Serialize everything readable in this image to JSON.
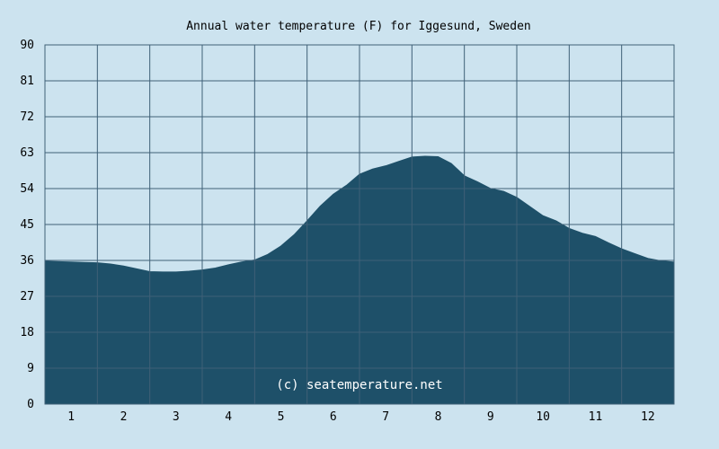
{
  "chart_data": {
    "type": "area",
    "title": "Annual water temperature (F) for Iggesund, Sweden",
    "watermark": "(c) seatemperature.net",
    "xlabel": "",
    "ylabel": "",
    "ylim": [
      0,
      90
    ],
    "xlim": [
      0.5,
      12.5
    ],
    "y_ticks": [
      "0",
      "9",
      "18",
      "27",
      "36",
      "45",
      "54",
      "63",
      "72",
      "81",
      "90"
    ],
    "x_ticks": [
      "1",
      "2",
      "3",
      "4",
      "5",
      "6",
      "7",
      "8",
      "9",
      "10",
      "11",
      "12"
    ],
    "grid": true,
    "colors": {
      "background": "#cce3ef",
      "plot_background": "#cce3ef",
      "fill": "#1e5069",
      "grid": "#3f6077",
      "watermark": "#ffffff"
    },
    "series": [
      {
        "x": [
          0.5,
          0.75,
          1.0,
          1.25,
          1.5,
          1.75,
          2.0,
          2.25,
          2.5,
          2.75,
          3.0,
          3.25,
          3.5,
          3.75,
          4.0,
          4.25,
          4.5,
          4.75,
          5.0,
          5.25,
          5.5,
          5.75,
          6.0,
          6.25,
          6.5,
          6.75,
          7.0,
          7.25,
          7.5,
          7.75,
          8.0,
          8.25,
          8.5,
          8.75,
          9.0,
          9.25,
          9.5,
          9.75,
          10.0,
          10.25,
          10.5,
          10.75,
          11.0,
          11.25,
          11.5,
          11.75,
          12.0,
          12.25,
          12.5
        ],
        "values": [
          35.8,
          35.7,
          35.6,
          35.5,
          35.4,
          35.1,
          34.6,
          33.9,
          33.2,
          33.1,
          33.1,
          33.3,
          33.6,
          34.1,
          34.9,
          35.6,
          36.1,
          37.5,
          39.6,
          42.4,
          45.9,
          49.6,
          52.6,
          54.8,
          57.6,
          58.9,
          59.7,
          60.8,
          61.9,
          62.1,
          62.0,
          60.3,
          57.2,
          55.7,
          54.0,
          53.3,
          51.8,
          49.5,
          47.2,
          45.9,
          44.0,
          42.8,
          42.0,
          40.4,
          38.9,
          37.7,
          36.5,
          35.9,
          35.6
        ]
      }
    ]
  }
}
